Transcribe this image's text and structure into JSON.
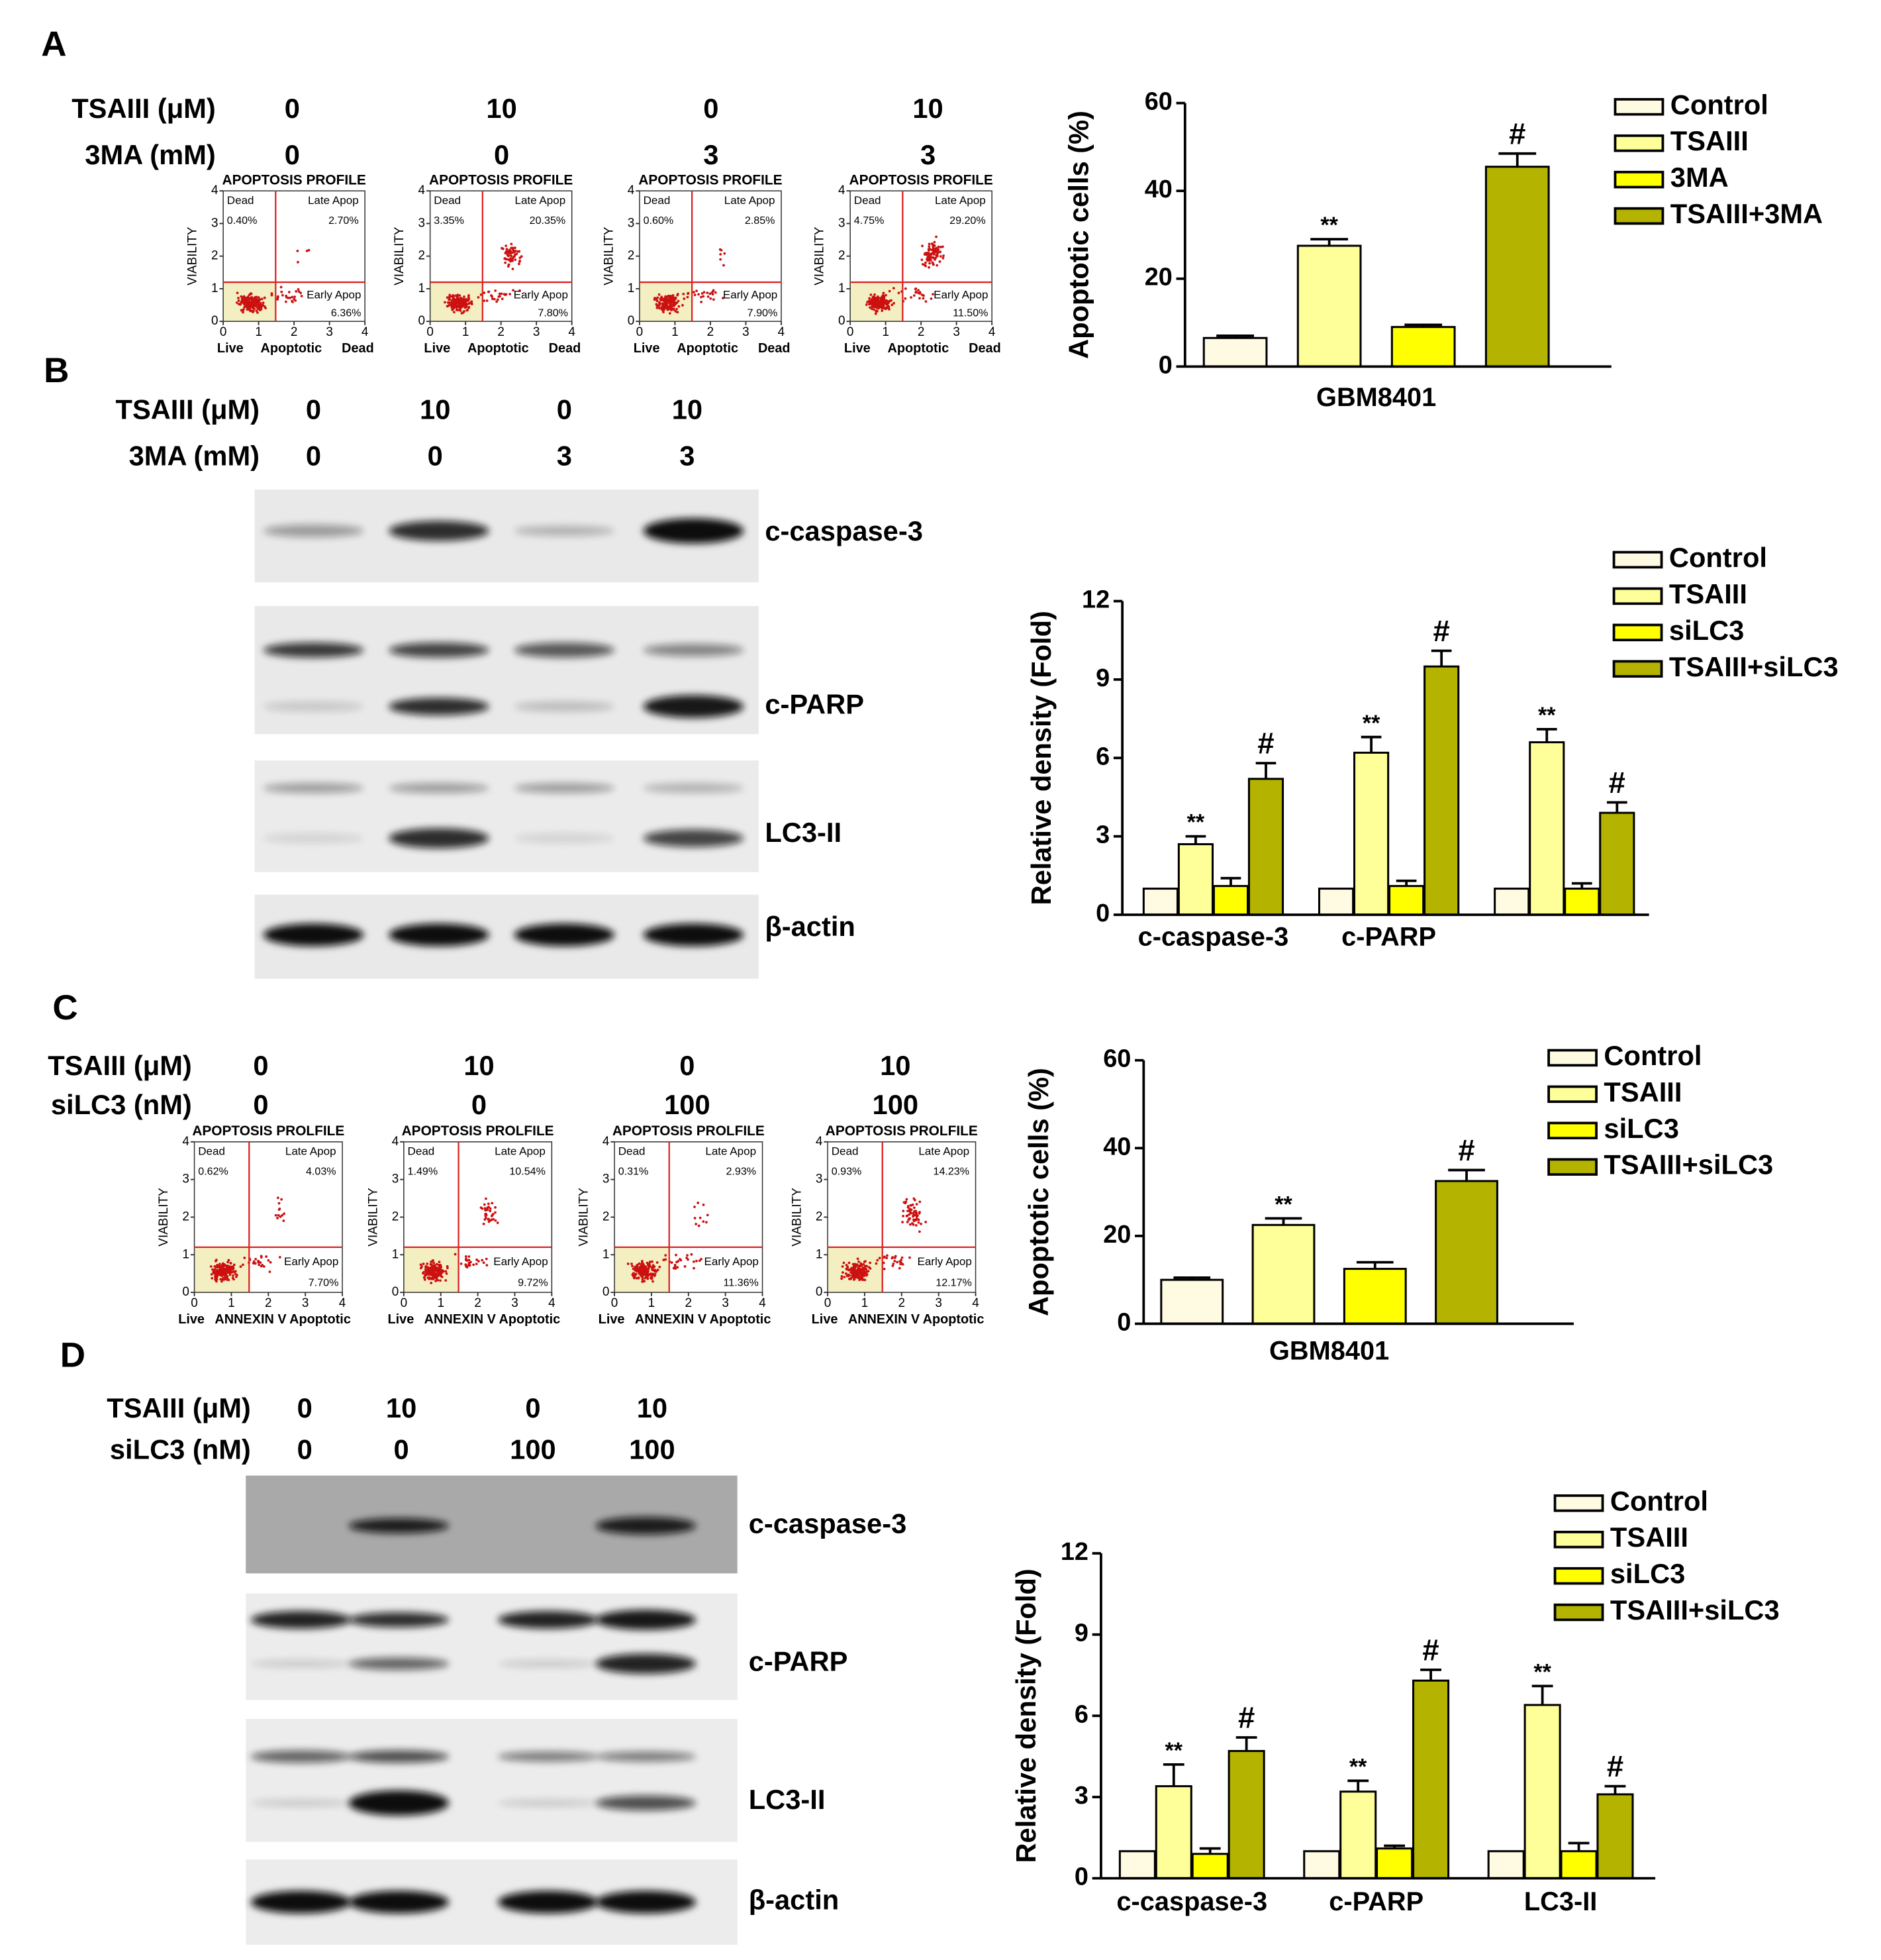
{
  "panel_labels": [
    "A",
    "B",
    "C",
    "D"
  ],
  "treatments": [
    {
      "rows": [
        {
          "label": "TSAIII (μM)",
          "values": [
            0,
            10,
            0,
            10
          ]
        },
        {
          "label": "3MA (mM)",
          "values": [
            0,
            0,
            3,
            3
          ]
        }
      ]
    },
    {
      "rows": [
        {
          "label": "TSAIII (μM)",
          "values": [
            0,
            10,
            0,
            10
          ]
        },
        {
          "label": "3MA (mM)",
          "values": [
            0,
            0,
            3,
            3
          ]
        }
      ]
    },
    {
      "rows": [
        {
          "label": "TSAIII (μM)",
          "values": [
            0,
            10,
            0,
            10
          ]
        },
        {
          "label": "siLC3 (nM)",
          "values": [
            0,
            0,
            100,
            100
          ]
        }
      ]
    },
    {
      "rows": [
        {
          "label": "TSAIII (μM)",
          "values": [
            0,
            10,
            0,
            10
          ]
        },
        {
          "label": "siLC3 (nM)",
          "values": [
            0,
            0,
            100,
            100
          ]
        }
      ]
    }
  ],
  "flow": [
    {
      "title": "APOPTOSIS PROFILE",
      "y_label": "VIABILITY",
      "x_labels": [
        "Live",
        "Apoptotic",
        "Dead"
      ],
      "quadrant_labels": [
        "Dead",
        "Late Apop",
        "Early Apop"
      ],
      "ticks": [
        0,
        1,
        2,
        3,
        4
      ],
      "plots": [
        {
          "dead": "0.40%",
          "late": "2.70%",
          "early": "6.36%"
        },
        {
          "dead": "3.35%",
          "late": "20.35%",
          "early": "7.80%"
        },
        {
          "dead": "0.60%",
          "late": "2.85%",
          "early": "7.90%"
        },
        {
          "dead": "4.75%",
          "late": "29.20%",
          "early": "11.50%"
        }
      ]
    },
    {
      "title": "APOPTOSIS PROLFILE",
      "y_label": "VIABILITY",
      "x_labels": [
        "Live",
        "ANNEXIN V",
        "Apoptotic"
      ],
      "quadrant_labels": [
        "Dead",
        "Late Apop",
        "Early Apop"
      ],
      "ticks": [
        0,
        1,
        2,
        3,
        4
      ],
      "plots": [
        {
          "dead": "0.62%",
          "late": "4.03%",
          "early": "7.70%"
        },
        {
          "dead": "1.49%",
          "late": "10.54%",
          "early": "9.72%"
        },
        {
          "dead": "0.31%",
          "late": "2.93%",
          "early": "11.36%"
        },
        {
          "dead": "0.93%",
          "late": "14.23%",
          "early": "12.17%"
        }
      ]
    }
  ],
  "blots": [
    {
      "labels": [
        "c-caspase-3",
        "c-PARP",
        "LC3-II",
        "β-actin"
      ]
    },
    {
      "labels": [
        "c-caspase-3",
        "c-PARP",
        "LC3-II",
        "β-actin"
      ]
    }
  ],
  "chart_data": [
    {
      "type": "bar",
      "y_label": "Apoptotic cells (%)",
      "categories": [
        "GBM8401"
      ],
      "ylim": [
        0,
        60
      ],
      "yticks": [
        0,
        20,
        40,
        60
      ],
      "series": [
        {
          "name": "Control",
          "color": "#fffbe3",
          "values": [
            6.5
          ],
          "errors": [
            0.5
          ]
        },
        {
          "name": "TSAIII",
          "color": "#ffff99",
          "values": [
            27.5
          ],
          "errors": [
            1.5
          ],
          "annotation": "**"
        },
        {
          "name": "3MA",
          "color": "#ffff00",
          "values": [
            9
          ],
          "errors": [
            0.5
          ]
        },
        {
          "name": "TSAIII+3MA",
          "color": "#b3b300",
          "values": [
            45.5
          ],
          "errors": [
            3
          ],
          "annotation": "#"
        }
      ]
    },
    {
      "type": "bar",
      "y_label": "Relative density (Fold)",
      "categories": [
        "c-caspase-3",
        "c-PARP",
        null
      ],
      "ylim": [
        0,
        12
      ],
      "yticks": [
        0,
        3,
        6,
        9,
        12
      ],
      "series": [
        {
          "name": "Control",
          "color": "#fffbe3",
          "values": [
            1,
            1,
            1
          ]
        },
        {
          "name": "TSAIII",
          "color": "#ffff99",
          "values": [
            2.7,
            6.2,
            6.6
          ],
          "errors": [
            0.3,
            0.6,
            0.5
          ],
          "annotation": "**"
        },
        {
          "name": "siLC3",
          "color": "#ffff00",
          "values": [
            1.1,
            1.1,
            1.0
          ],
          "errors": [
            0.3,
            0.2,
            0.2
          ]
        },
        {
          "name": "TSAIII+siLC3",
          "color": "#b3b300",
          "values": [
            5.2,
            9.5,
            3.9
          ],
          "errors": [
            0.6,
            0.6,
            0.4
          ],
          "annotation": "#"
        }
      ]
    },
    {
      "type": "bar",
      "y_label": "Apoptotic cells (%)",
      "categories": [
        "GBM8401"
      ],
      "ylim": [
        0,
        60
      ],
      "yticks": [
        0,
        20,
        40,
        60
      ],
      "series": [
        {
          "name": "Control",
          "color": "#fffbe3",
          "values": [
            10
          ],
          "errors": [
            0.5
          ]
        },
        {
          "name": "TSAIII",
          "color": "#ffff99",
          "values": [
            22.5
          ],
          "errors": [
            1.5
          ],
          "annotation": "**"
        },
        {
          "name": "siLC3",
          "color": "#ffff00",
          "values": [
            12.5
          ],
          "errors": [
            1.5
          ]
        },
        {
          "name": "TSAIII+siLC3",
          "color": "#b3b300",
          "values": [
            32.5
          ],
          "errors": [
            2.5
          ],
          "annotation": "#"
        }
      ]
    },
    {
      "type": "bar",
      "y_label": "Relative density (Fold)",
      "categories": [
        "c-caspase-3",
        "c-PARP",
        "LC3-II"
      ],
      "ylim": [
        0,
        12
      ],
      "yticks": [
        0,
        3,
        6,
        9,
        12
      ],
      "series": [
        {
          "name": "Control",
          "color": "#fffbe3",
          "values": [
            1,
            1,
            1
          ]
        },
        {
          "name": "TSAIII",
          "color": "#ffff99",
          "values": [
            3.4,
            3.2,
            6.4
          ],
          "errors": [
            0.8,
            0.4,
            0.7
          ],
          "annotation": "**"
        },
        {
          "name": "siLC3",
          "color": "#ffff00",
          "values": [
            0.9,
            1.1,
            1.0
          ],
          "errors": [
            0.2,
            0.1,
            0.3
          ]
        },
        {
          "name": "TSAIII+siLC3",
          "color": "#b3b300",
          "values": [
            4.7,
            7.3,
            3.1
          ],
          "errors": [
            0.5,
            0.4,
            0.3
          ],
          "annotation": "#"
        }
      ]
    }
  ]
}
